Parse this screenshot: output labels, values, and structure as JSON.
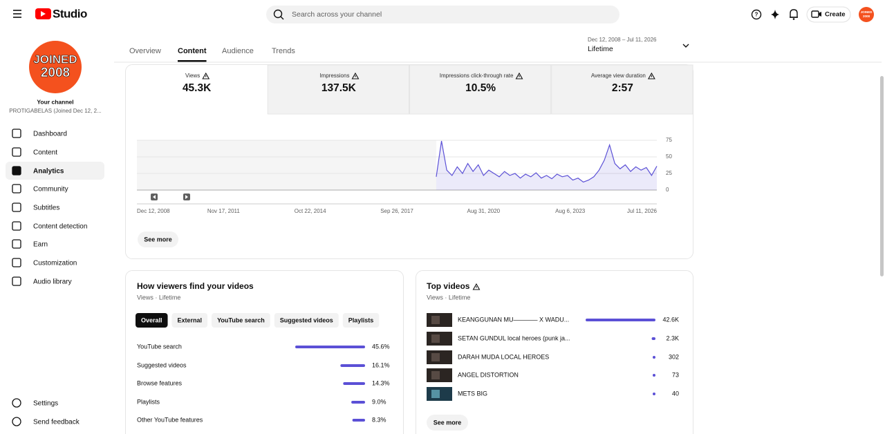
{
  "header": {
    "logo": "Studio",
    "search_placeholder": "Search across your channel",
    "create": "Create"
  },
  "sidebar": {
    "channel_badge": [
      "JOINED",
      "2008"
    ],
    "your_channel": "Your channel",
    "channel_name": "PROTIGABELAS (Joined Dec 12, 2...",
    "nav": [
      {
        "label": "Dashboard",
        "selected": false
      },
      {
        "label": "Content",
        "selected": false
      },
      {
        "label": "Analytics",
        "selected": true
      },
      {
        "label": "Community",
        "selected": false
      },
      {
        "label": "Subtitles",
        "selected": false
      },
      {
        "label": "Content detection",
        "selected": false
      },
      {
        "label": "Earn",
        "selected": false
      },
      {
        "label": "Customization",
        "selected": false
      },
      {
        "label": "Audio library",
        "selected": false
      }
    ],
    "footer": [
      "Settings",
      "Send feedback"
    ]
  },
  "tabs": [
    {
      "label": "Overview",
      "selected": false
    },
    {
      "label": "Content",
      "selected": true
    },
    {
      "label": "Audience",
      "selected": false
    },
    {
      "label": "Trends",
      "selected": false
    }
  ],
  "date_range": {
    "range": "Dec 12, 2008 – Jul 11, 2026",
    "period": "Lifetime"
  },
  "metrics": [
    {
      "label": "Views",
      "value": "45.3K",
      "selected": true
    },
    {
      "label": "Impressions",
      "value": "137.5K",
      "selected": false
    },
    {
      "label": "Impressions click-through rate",
      "value": "10.5%",
      "selected": false
    },
    {
      "label": "Average view duration",
      "value": "2:57",
      "selected": false
    }
  ],
  "chart_data": {
    "type": "line",
    "x_labels": [
      "Dec 12, 2008",
      "Nov 17, 2011",
      "Oct 22, 2014",
      "Sep 26, 2017",
      "Aug 31, 2020",
      "Aug 6, 2023",
      "Jul 11, 2026"
    ],
    "color": "#5b50d6",
    "values": [
      null,
      null,
      null,
      null,
      null,
      null,
      null,
      null,
      null,
      null,
      null,
      null,
      null,
      null,
      null,
      null,
      null,
      null,
      null,
      null,
      null,
      null,
      null,
      null,
      null,
      null,
      null,
      null,
      null,
      null,
      null,
      null,
      null,
      null,
      null,
      null,
      null,
      null,
      null,
      null,
      null,
      null,
      null,
      null,
      null,
      null,
      null,
      null,
      null,
      null,
      null,
      null,
      null,
      null,
      null,
      null,
      null,
      20,
      74,
      30,
      22,
      35,
      25,
      40,
      28,
      38,
      22,
      30,
      25,
      20,
      28,
      22,
      25,
      18,
      24,
      20,
      26,
      18,
      22,
      17,
      24,
      20,
      22,
      15,
      18,
      12,
      15,
      20,
      30,
      45,
      68,
      40,
      32,
      38,
      28,
      35,
      30,
      34,
      22,
      36
    ],
    "ylim": [
      0,
      75
    ],
    "yticks": [
      0,
      25,
      50,
      75
    ],
    "grid": true
  },
  "see_more": "See more",
  "traffic": {
    "title": "How viewers find your videos",
    "subtitle": "Views · Lifetime",
    "chips": [
      {
        "label": "Overall",
        "selected": true
      },
      {
        "label": "External",
        "selected": false
      },
      {
        "label": "YouTube search",
        "selected": false
      },
      {
        "label": "Suggested videos",
        "selected": false
      },
      {
        "label": "Playlists",
        "selected": false
      }
    ],
    "rows": [
      {
        "label": "YouTube search",
        "value": 45.6,
        "value_label": "45.6%"
      },
      {
        "label": "Suggested videos",
        "value": 16.1,
        "value_label": "16.1%"
      },
      {
        "label": "Browse features",
        "value": 14.3,
        "value_label": "14.3%"
      },
      {
        "label": "Playlists",
        "value": 9.0,
        "value_label": "9.0%"
      },
      {
        "label": "Other YouTube features",
        "value": 8.3,
        "value_label": "8.3%"
      }
    ]
  },
  "top_videos": {
    "title": "Top videos",
    "subtitle": "Views · Lifetime",
    "videos": [
      {
        "title": "KEANGGUNAN MU––––––– X WADU...",
        "value": 42600,
        "value_label": "42.6K"
      },
      {
        "title": "SETAN GUNDUL local heroes (punk ja...",
        "value": 2300,
        "value_label": "2.3K"
      },
      {
        "title": "DARAH MUDA LOCAL HEROES",
        "value": 302,
        "value_label": "302"
      },
      {
        "title": "ANGEL DISTORTION",
        "value": 73,
        "value_label": "73"
      },
      {
        "title": "METS BIG",
        "value": 40,
        "value_label": "40"
      }
    ]
  }
}
